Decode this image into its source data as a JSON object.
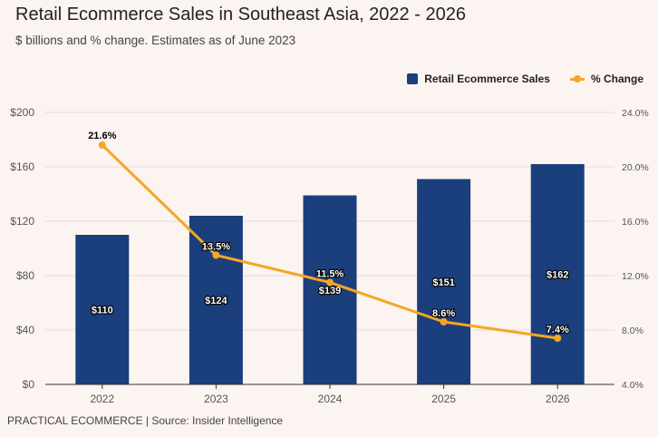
{
  "header": {
    "title": "Retail Ecommerce Sales in Southeast Asia, 2022 - 2026",
    "subtitle": "$ billions and % change. Estimates as of June 2023"
  },
  "footer": {
    "source": "PRACTICAL ECOMMERCE | Source: Insider Intelligence"
  },
  "colors": {
    "bar": "#1b3f7c",
    "line": "#f6a623",
    "grid": "#e4dcd8",
    "axis": "#555555",
    "label_text": "#ffffff"
  },
  "chart_data": {
    "type": "bar",
    "title": "Retail Ecommerce Sales in Southeast Asia, 2022 - 2026",
    "subtitle": "$ billions and % change. Estimates as of June 2023",
    "categories": [
      "2022",
      "2023",
      "2024",
      "2025",
      "2026"
    ],
    "series": [
      {
        "name": "Retail Ecommerce Sales",
        "type": "bar",
        "axis": "left",
        "values": [
          110,
          124,
          139,
          151,
          162
        ],
        "labels": [
          "$110",
          "$124",
          "$139",
          "$151",
          "$162"
        ]
      },
      {
        "name": "% Change",
        "type": "line",
        "axis": "right",
        "values": [
          21.6,
          13.5,
          11.5,
          8.6,
          7.4
        ],
        "labels": [
          "21.6%",
          "13.5%",
          "11.5%",
          "8.6%",
          "7.4%"
        ]
      }
    ],
    "ylim_left": [
      0,
      200
    ],
    "yticks_left": [
      "$0",
      "$40",
      "$80",
      "$120",
      "$160",
      "$200"
    ],
    "ylim_right": [
      4,
      24
    ],
    "yticks_right": [
      "4.0%",
      "8.0%",
      "12.0%",
      "16.0%",
      "20.0%",
      "24.0%"
    ],
    "grid": true,
    "legend_position": "top-right"
  }
}
